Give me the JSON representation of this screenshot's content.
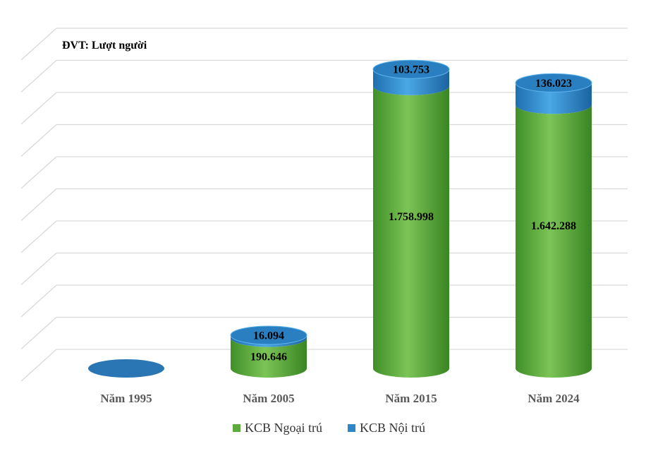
{
  "chart_data": {
    "type": "bar",
    "style": "3d-cylinder-stacked",
    "unit_label": "ĐVT: Lượt người",
    "categories": [
      "Năm 1995",
      "Năm 2005",
      "Năm 2015",
      "Năm 2024"
    ],
    "series": [
      {
        "name": "KCB Ngoại trú",
        "color": "#5eaa3c",
        "values": [
          0,
          190646,
          1758998,
          1642288
        ],
        "labels": [
          "",
          "190.646",
          "1.758.998",
          "1.642.288"
        ]
      },
      {
        "name": "KCB Nội trú",
        "color": "#2e86c8",
        "values": [
          0,
          16094,
          103753,
          136023
        ],
        "labels": [
          "",
          "16.094",
          "103.753",
          "136.023"
        ]
      }
    ],
    "ylim": [
      0,
      2000000
    ],
    "grid": true,
    "legend_position": "bottom"
  }
}
